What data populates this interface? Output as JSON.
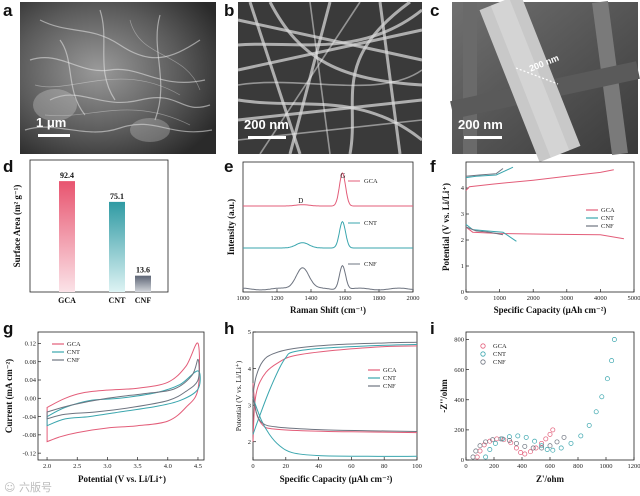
{
  "colors": {
    "gca": "#e35d79",
    "cnt": "#3aa6ae",
    "cnf": "#6e7480"
  },
  "sem": [
    {
      "label": "a",
      "scale": "1 μm"
    },
    {
      "label": "b",
      "scale": "200 nm"
    },
    {
      "label": "c",
      "scale": "200 nm",
      "measure": "200 nm"
    }
  ],
  "watermark": "☺ 六版号",
  "chart_data": [
    {
      "panel": "d",
      "type": "bar",
      "title": "",
      "ylabel": "Surface Area (m² g⁻¹)",
      "xlabel": "",
      "categories": [
        "GCA",
        "CNT",
        "CNF"
      ],
      "values": [
        92.4,
        75.1,
        13.6
      ],
      "value_labels": [
        "92.4",
        "75.1",
        "13.6"
      ],
      "ylim": [
        0,
        110
      ]
    },
    {
      "panel": "e",
      "type": "line",
      "title": "",
      "xlabel": "Raman Shift (cm⁻¹)",
      "ylabel": "Intensity (a.u.)",
      "xlim": [
        1000,
        2000
      ],
      "xticks": [
        "1000",
        "1200",
        "1400",
        "1600",
        "1800",
        "2000"
      ],
      "peaks": [
        "D",
        "G"
      ],
      "series": [
        {
          "name": "GCA",
          "peak_heights": {
            "D": 0.03,
            "G": 0.75
          }
        },
        {
          "name": "CNT",
          "peak_heights": {
            "D": 0.12,
            "G": 0.6
          }
        },
        {
          "name": "CNF",
          "peak_heights": {
            "D": 0.5,
            "G": 0.55
          }
        }
      ]
    },
    {
      "panel": "f",
      "type": "line",
      "title": "",
      "xlabel": "Specific Capacity (μAh cm⁻²)",
      "ylabel": "Potential (V vs. Li/Li⁺)",
      "xlim": [
        0,
        5000
      ],
      "ylim": [
        0,
        5
      ],
      "xticks": [
        "0",
        "1000",
        "2000",
        "3000",
        "4000",
        "5000"
      ],
      "yticks": [
        "0",
        "1",
        "2",
        "3",
        "4"
      ],
      "series": [
        {
          "name": "GCA",
          "charge": [
            [
              0,
              3.9
            ],
            [
              100,
              4.05
            ],
            [
              800,
              4.15
            ],
            [
              2000,
              4.3
            ],
            [
              3000,
              4.45
            ],
            [
              4000,
              4.6
            ],
            [
              4400,
              4.7
            ]
          ],
          "discharge": [
            [
              0,
              2.5
            ],
            [
              200,
              2.3
            ],
            [
              1000,
              2.25
            ],
            [
              2500,
              2.22
            ],
            [
              4000,
              2.2
            ],
            [
              4700,
              2.05
            ]
          ]
        },
        {
          "name": "CNT",
          "charge": [
            [
              0,
              4.4
            ],
            [
              300,
              4.45
            ],
            [
              900,
              4.5
            ],
            [
              1400,
              4.8
            ]
          ],
          "discharge": [
            [
              0,
              2.6
            ],
            [
              200,
              2.4
            ],
            [
              600,
              2.35
            ],
            [
              1100,
              2.3
            ],
            [
              1500,
              1.95
            ]
          ]
        },
        {
          "name": "CNF",
          "charge": [
            [
              0,
              4.45
            ],
            [
              400,
              4.5
            ],
            [
              900,
              4.55
            ],
            [
              1100,
              4.75
            ]
          ],
          "discharge": [
            [
              0,
              2.5
            ],
            [
              300,
              2.35
            ],
            [
              700,
              2.3
            ],
            [
              1100,
              2.2
            ]
          ]
        }
      ]
    },
    {
      "panel": "g",
      "type": "line",
      "title": "",
      "xlabel": "Potential (V vs. Li/Li⁺)",
      "ylabel": "Current (mA cm⁻²)",
      "xlim": [
        1.85,
        4.6
      ],
      "ylim": [
        -0.135,
        0.145
      ],
      "xticks": [
        "2.0",
        "2.5",
        "3.0",
        "3.5",
        "4.0",
        "4.5"
      ],
      "yticks": [
        "0.12",
        "0.08",
        "0.04",
        "0.00",
        "-0.04",
        "-0.08",
        "-0.12"
      ],
      "series": [
        {
          "name": "GCA",
          "upper": [
            [
              2.0,
              -0.02
            ],
            [
              2.3,
              0.0
            ],
            [
              2.6,
              0.012
            ],
            [
              3.0,
              0.018
            ],
            [
              3.5,
              0.022
            ],
            [
              4.0,
              0.035
            ],
            [
              4.3,
              0.07
            ],
            [
              4.5,
              0.12
            ]
          ],
          "lower": [
            [
              4.5,
              0.02
            ],
            [
              4.3,
              -0.02
            ],
            [
              4.0,
              -0.05
            ],
            [
              3.5,
              -0.06
            ],
            [
              3.0,
              -0.065
            ],
            [
              2.5,
              -0.075
            ],
            [
              2.2,
              -0.085
            ],
            [
              2.0,
              -0.095
            ]
          ]
        },
        {
          "name": "CNT",
          "upper": [
            [
              2.0,
              -0.04
            ],
            [
              2.3,
              -0.02
            ],
            [
              2.7,
              -0.005
            ],
            [
              3.2,
              0.0
            ],
            [
              3.8,
              0.012
            ],
            [
              4.2,
              0.03
            ],
            [
              4.5,
              0.06
            ]
          ],
          "lower": [
            [
              4.5,
              0.02
            ],
            [
              4.2,
              -0.005
            ],
            [
              3.8,
              -0.018
            ],
            [
              3.2,
              -0.03
            ],
            [
              2.7,
              -0.04
            ],
            [
              2.3,
              -0.045
            ],
            [
              2.0,
              -0.06
            ]
          ]
        },
        {
          "name": "CNF",
          "upper": [
            [
              2.0,
              -0.03
            ],
            [
              2.4,
              -0.015
            ],
            [
              3.0,
              0.0
            ],
            [
              3.6,
              0.01
            ],
            [
              4.1,
              0.02
            ],
            [
              4.4,
              0.05
            ],
            [
              4.5,
              0.085
            ]
          ],
          "lower": [
            [
              4.5,
              0.04
            ],
            [
              4.3,
              0.015
            ],
            [
              4.0,
              -0.005
            ],
            [
              3.4,
              -0.02
            ],
            [
              2.8,
              -0.03
            ],
            [
              2.3,
              -0.035
            ],
            [
              2.0,
              -0.045
            ]
          ]
        }
      ]
    },
    {
      "panel": "h",
      "type": "line",
      "title": "",
      "xlabel": "Specific Capacity (μAh cm⁻²)",
      "ylabel": "Potential (V vs. Li/Li⁺)",
      "xlim": [
        0,
        100
      ],
      "ylim": [
        1.5,
        5
      ],
      "xticks": [
        "0",
        "20",
        "40",
        "60",
        "80",
        "100"
      ],
      "yticks": [
        "2",
        "3",
        "4",
        "5"
      ],
      "series": [
        {
          "name": "GCA",
          "charge": [
            [
              0,
              2.0
            ],
            [
              1,
              3.0
            ],
            [
              3,
              3.5
            ],
            [
              8,
              3.9
            ],
            [
              15,
              4.15
            ],
            [
              25,
              4.35
            ],
            [
              50,
              4.5
            ],
            [
              80,
              4.6
            ],
            [
              100,
              4.62
            ]
          ],
          "discharge": [
            [
              0,
              3.6
            ],
            [
              2,
              2.8
            ],
            [
              6,
              2.45
            ],
            [
              12,
              2.35
            ],
            [
              30,
              2.3
            ],
            [
              60,
              2.27
            ],
            [
              100,
              2.25
            ]
          ]
        },
        {
          "name": "CNT",
          "charge": [
            [
              0,
              2.2
            ],
            [
              4,
              2.7
            ],
            [
              10,
              3.4
            ],
            [
              16,
              4.0
            ],
            [
              20,
              4.3
            ],
            [
              24,
              4.45
            ],
            [
              40,
              4.55
            ],
            [
              70,
              4.62
            ],
            [
              100,
              4.66
            ]
          ],
          "discharge": [
            [
              0,
              3.2
            ],
            [
              5,
              2.6
            ],
            [
              10,
              2.2
            ],
            [
              16,
              1.9
            ],
            [
              24,
              1.7
            ],
            [
              40,
              1.62
            ],
            [
              70,
              1.6
            ],
            [
              100,
              1.6
            ]
          ]
        },
        {
          "name": "CNF",
          "charge": [
            [
              0,
              3.3
            ],
            [
              2,
              3.8
            ],
            [
              6,
              4.2
            ],
            [
              12,
              4.4
            ],
            [
              25,
              4.55
            ],
            [
              50,
              4.65
            ],
            [
              80,
              4.7
            ],
            [
              100,
              4.72
            ]
          ],
          "discharge": [
            [
              0,
              3.3
            ],
            [
              2,
              2.8
            ],
            [
              6,
              2.5
            ],
            [
              15,
              2.4
            ],
            [
              40,
              2.33
            ],
            [
              70,
              2.3
            ],
            [
              100,
              2.28
            ]
          ]
        }
      ]
    },
    {
      "panel": "i",
      "type": "scatter",
      "title": "",
      "xlabel": "Z'/ohm",
      "ylabel": "-Z''/ohm",
      "xlim": [
        0,
        1200
      ],
      "ylim": [
        0,
        850
      ],
      "xticks": [
        "0",
        "200",
        "400",
        "600",
        "800",
        "1000",
        "1200"
      ],
      "yticks": [
        "0",
        "200",
        "400",
        "600",
        "800"
      ],
      "series": [
        {
          "name": "GCA",
          "marker": "open-circle",
          "points": [
            [
              80,
              20
            ],
            [
              100,
              60
            ],
            [
              130,
              100
            ],
            [
              170,
              125
            ],
            [
              220,
              140
            ],
            [
              270,
              135
            ],
            [
              320,
              115
            ],
            [
              360,
              80
            ],
            [
              390,
              50
            ],
            [
              420,
              40
            ],
            [
              460,
              55
            ],
            [
              500,
              80
            ],
            [
              540,
              110
            ],
            [
              570,
              140
            ],
            [
              600,
              170
            ],
            [
              620,
              200
            ]
          ]
        },
        {
          "name": "CNT",
          "marker": "open-circle",
          "points": [
            [
              140,
              20
            ],
            [
              170,
              70
            ],
            [
              210,
              110
            ],
            [
              260,
              140
            ],
            [
              310,
              155
            ],
            [
              370,
              160
            ],
            [
              430,
              150
            ],
            [
              490,
              125
            ],
            [
              540,
              95
            ],
            [
              580,
              70
            ],
            [
              620,
              65
            ],
            [
              680,
              80
            ],
            [
              750,
              110
            ],
            [
              820,
              160
            ],
            [
              880,
              230
            ],
            [
              930,
              320
            ],
            [
              970,
              420
            ],
            [
              1010,
              540
            ],
            [
              1040,
              660
            ],
            [
              1060,
              800
            ]
          ]
        },
        {
          "name": "CNF",
          "marker": "open-circle",
          "points": [
            [
              50,
              20
            ],
            [
              70,
              60
            ],
            [
              100,
              95
            ],
            [
              140,
              120
            ],
            [
              190,
              135
            ],
            [
              250,
              140
            ],
            [
              310,
              130
            ],
            [
              360,
              110
            ],
            [
              420,
              90
            ],
            [
              480,
              80
            ],
            [
              540,
              80
            ],
            [
              600,
              95
            ],
            [
              650,
              120
            ],
            [
              700,
              150
            ]
          ]
        }
      ]
    }
  ]
}
